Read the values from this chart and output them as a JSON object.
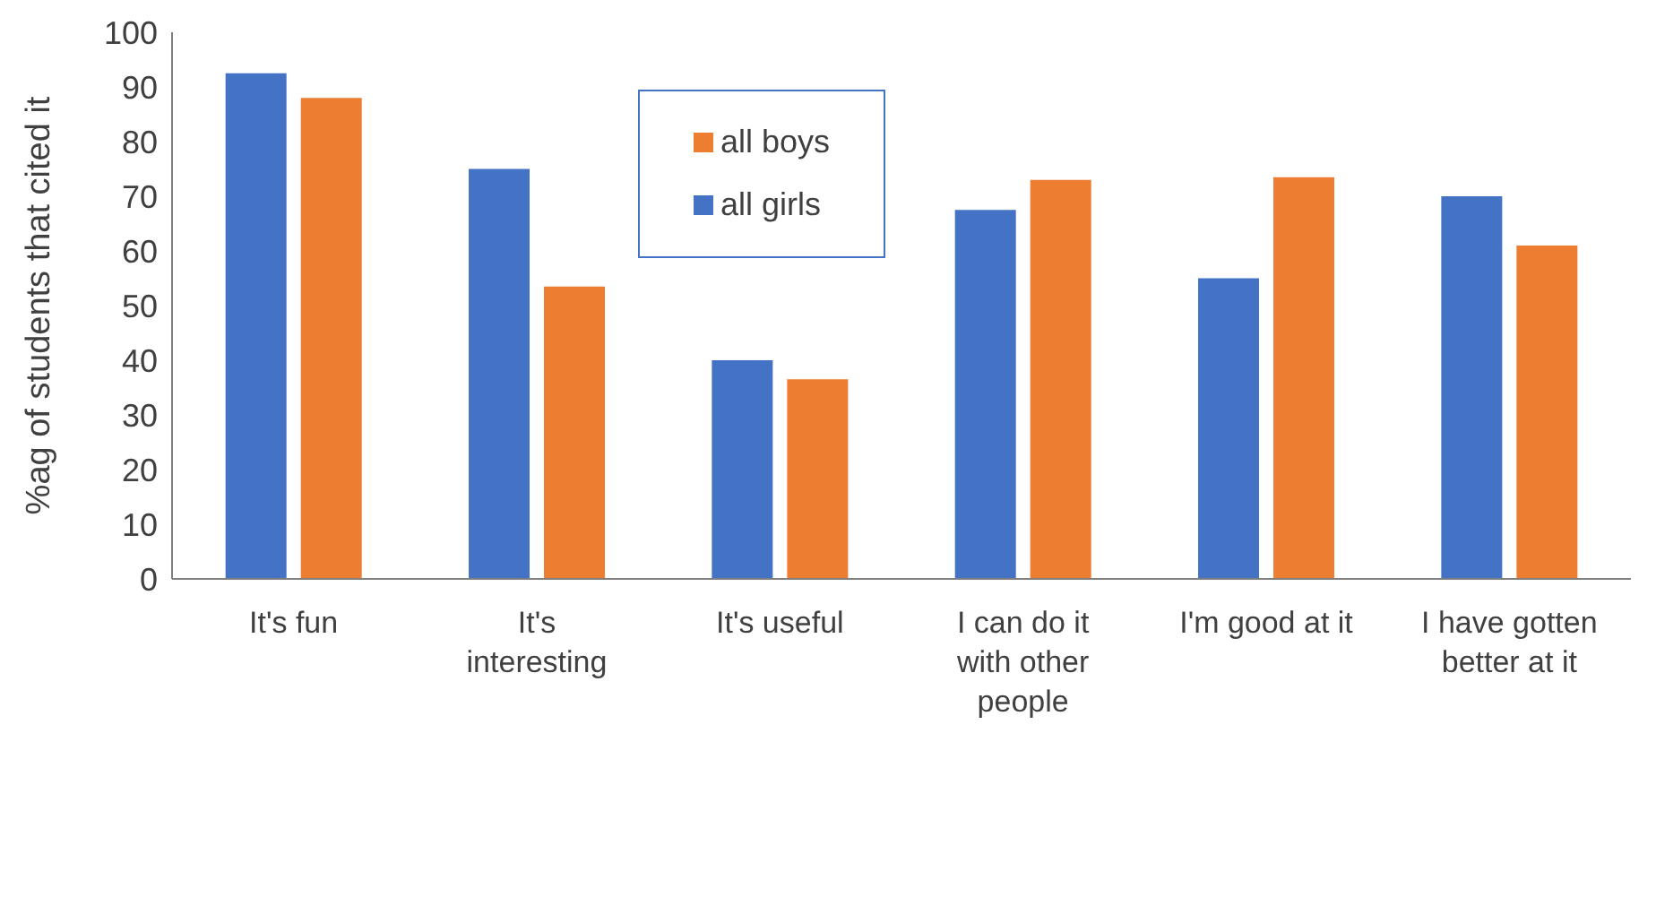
{
  "chart_data": {
    "type": "bar",
    "ylabel": "%ag of students that cited it",
    "categories": [
      "It's fun",
      "It's interesting",
      "It's useful",
      "I can do it with other people",
      "I'm good at it",
      "I have gotten better at it"
    ],
    "series": [
      {
        "name": "all girls",
        "color": "#4472c4",
        "values": [
          92.5,
          75,
          40,
          67.5,
          55,
          70
        ]
      },
      {
        "name": "all boys",
        "color": "#ed7d31",
        "values": [
          88,
          53.5,
          36.5,
          73,
          73.5,
          61
        ]
      }
    ],
    "ylim": [
      0,
      100
    ],
    "yticks": [
      0,
      10,
      20,
      30,
      40,
      50,
      60,
      70,
      80,
      90,
      100
    ],
    "grid": false,
    "legend": "top"
  }
}
